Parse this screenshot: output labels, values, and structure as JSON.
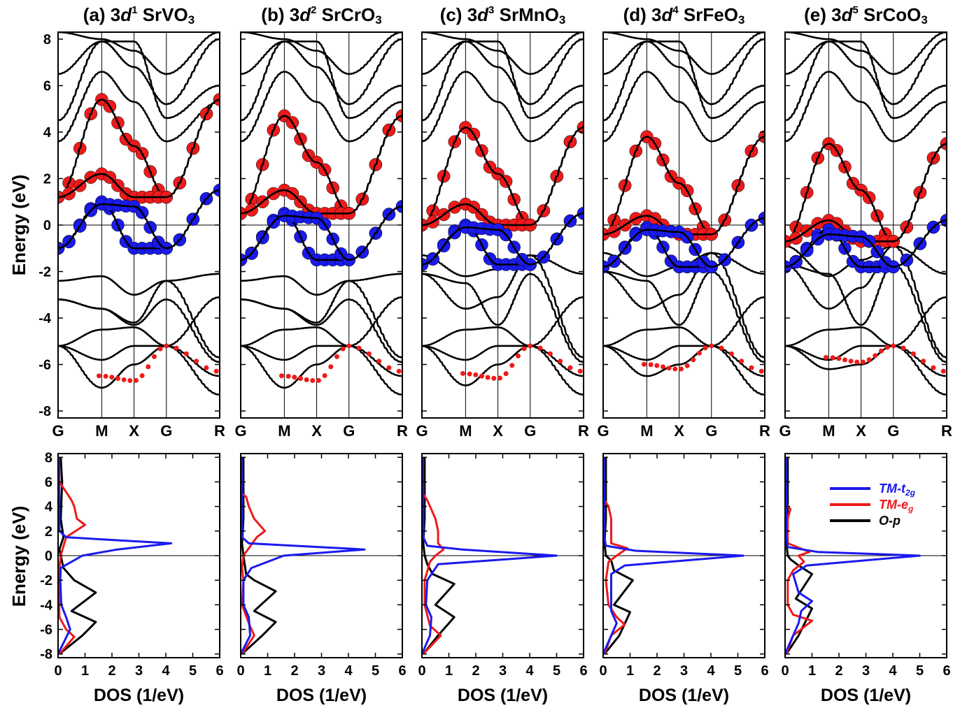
{
  "figure": {
    "band_ylabel": "Energy (eV)",
    "dos_ylabel": "Energy (eV)",
    "dos_xlabel": "DOS (1/eV)",
    "legend": [
      {
        "label": "TM-t",
        "sub": "2g",
        "color": "#1a1aee"
      },
      {
        "label": "TM-e",
        "sub": "g",
        "color": "#ee1a1a"
      },
      {
        "label": "O-p",
        "sub": "",
        "color": "#000000"
      }
    ]
  },
  "panels": [
    {
      "tag": "(a) 3",
      "d": "d",
      "sup": "1",
      "comp": " SrVO",
      "sub3": "3"
    },
    {
      "tag": "(b) 3",
      "d": "d",
      "sup": "2",
      "comp": " SrCrO",
      "sub3": "3"
    },
    {
      "tag": "(c) 3",
      "d": "d",
      "sup": "3",
      "comp": " SrMnO",
      "sub3": "3"
    },
    {
      "tag": "(d) 3",
      "d": "d",
      "sup": "4",
      "comp": " SrFeO",
      "sub3": "3"
    },
    {
      "tag": "(e) 3",
      "d": "d",
      "sup": "5",
      "comp": " SrCoO",
      "sub3": "3"
    }
  ],
  "chart_data": [
    {
      "type": "line",
      "name": "band structure",
      "kpoints": [
        "G",
        "M",
        "X",
        "G",
        "R"
      ],
      "ylabel": "Energy (eV)",
      "ylim": [
        -8.3,
        8.3
      ],
      "yticks": [
        -8,
        -6,
        -4,
        -2,
        0,
        2,
        4,
        6,
        8
      ],
      "fermi_level": 0,
      "panels": [
        {
          "eg_bands": [
            [
              1.2,
              5.4,
              3.4,
              1.2,
              5.4
            ],
            [
              1.2,
              2.2,
              1.2,
              1.2,
              5.4
            ]
          ],
          "t2g_bands": [
            [
              -1.0,
              1.0,
              -1.0,
              -1.0,
              1.5
            ],
            [
              -1.0,
              0.9,
              0.8,
              -1.0,
              1.5
            ]
          ],
          "o_top": -2.4,
          "o_bottom": -7.0
        },
        {
          "eg_bands": [
            [
              0.5,
              4.7,
              2.7,
              0.5,
              4.7
            ],
            [
              0.5,
              1.5,
              0.5,
              0.5,
              4.7
            ]
          ],
          "t2g_bands": [
            [
              -1.5,
              0.5,
              -1.5,
              -1.5,
              0.8
            ],
            [
              -1.5,
              0.4,
              0.3,
              -1.5,
              0.8
            ]
          ],
          "o_top": -2.4,
          "o_bottom": -7.0
        },
        {
          "eg_bands": [
            [
              0.0,
              4.2,
              2.2,
              0.0,
              4.2
            ],
            [
              0.0,
              0.9,
              0.0,
              0.0,
              4.2
            ]
          ],
          "t2g_bands": [
            [
              -1.7,
              0.0,
              -1.7,
              -1.7,
              0.5
            ],
            [
              -1.7,
              -0.1,
              -0.2,
              -1.7,
              0.5
            ]
          ],
          "o_top": -1.3,
          "o_bottom": -6.9
        },
        {
          "eg_bands": [
            [
              -0.4,
              3.8,
              1.8,
              -0.4,
              3.8
            ],
            [
              -0.4,
              0.4,
              -0.4,
              -0.4,
              3.8
            ]
          ],
          "t2g_bands": [
            [
              -1.8,
              -0.1,
              -1.8,
              -1.8,
              0.3
            ],
            [
              -1.8,
              -0.2,
              -0.3,
              -1.8,
              0.3
            ]
          ],
          "o_top": -1.2,
          "o_bottom": -6.5
        },
        {
          "eg_bands": [
            [
              -0.7,
              3.5,
              1.5,
              -0.7,
              3.5
            ],
            [
              -0.7,
              0.2,
              -0.7,
              -0.7,
              3.5
            ]
          ],
          "t2g_bands": [
            [
              -1.8,
              -0.2,
              -1.8,
              -1.8,
              0.2
            ],
            [
              -1.8,
              -0.4,
              -0.5,
              -1.8,
              0.2
            ]
          ],
          "o_top": -0.9,
          "o_bottom": -6.2
        }
      ]
    },
    {
      "type": "line",
      "name": "density of states",
      "xlabel": "DOS (1/eV)",
      "ylabel": "Energy (eV)",
      "xlim": [
        0,
        6
      ],
      "ylim": [
        -8.3,
        8.3
      ],
      "xticks": [
        0,
        1,
        2,
        3,
        4,
        5,
        6
      ],
      "yticks": [
        -8,
        -6,
        -4,
        -2,
        0,
        2,
        4,
        6,
        8
      ],
      "series_labels": [
        "TM-t2g",
        "TM-eg",
        "O-p"
      ],
      "panels": [
        {
          "t2g": [
            [
              -8,
              0
            ],
            [
              -6,
              0.45
            ],
            [
              -5,
              0.3
            ],
            [
              -4,
              0.12
            ],
            [
              -2,
              0.08
            ],
            [
              -1,
              0.1
            ],
            [
              0,
              0.9
            ],
            [
              0.5,
              2.2
            ],
            [
              1.0,
              4.2
            ],
            [
              1.3,
              1.8
            ],
            [
              1.5,
              0.3
            ],
            [
              2,
              0.05
            ],
            [
              4,
              0.05
            ],
            [
              6,
              0.04
            ],
            [
              8,
              0.03
            ]
          ],
          "eg": [
            [
              -8,
              0.05
            ],
            [
              -6.6,
              0.6
            ],
            [
              -6,
              0.3
            ],
            [
              -5,
              0.05
            ],
            [
              -3,
              0.03
            ],
            [
              -1,
              0.05
            ],
            [
              0,
              0.1
            ],
            [
              1.5,
              0.3
            ],
            [
              2.5,
              1.0
            ],
            [
              3,
              0.7
            ],
            [
              4,
              0.6
            ],
            [
              4.5,
              0.5
            ],
            [
              5.5,
              0.2
            ],
            [
              6,
              0.05
            ],
            [
              8,
              0.03
            ]
          ],
          "op": [
            [
              -8,
              0.05
            ],
            [
              -6.5,
              0.9
            ],
            [
              -5.4,
              1.4
            ],
            [
              -4.5,
              0.5
            ],
            [
              -3.0,
              1.4
            ],
            [
              -2.0,
              0.6
            ],
            [
              -1,
              0.2
            ],
            [
              0,
              0.1
            ],
            [
              0.5,
              0.05
            ],
            [
              1.5,
              0.2
            ],
            [
              3,
              0.1
            ],
            [
              6,
              0.15
            ],
            [
              8,
              0.1
            ]
          ]
        },
        {
          "t2g": [
            [
              -8,
              0
            ],
            [
              -6.5,
              0.35
            ],
            [
              -5,
              0.3
            ],
            [
              -4,
              0.1
            ],
            [
              -2,
              0.1
            ],
            [
              -1.0,
              0.4
            ],
            [
              0,
              1.6
            ],
            [
              0.5,
              4.6
            ],
            [
              0.8,
              2.0
            ],
            [
              1.0,
              0.3
            ],
            [
              1.5,
              0.05
            ],
            [
              4,
              0.05
            ],
            [
              6,
              0.04
            ],
            [
              8,
              0.03
            ]
          ],
          "eg": [
            [
              -8,
              0.05
            ],
            [
              -6.5,
              0.5
            ],
            [
              -5.5,
              0.3
            ],
            [
              -4,
              0.05
            ],
            [
              -2,
              0.1
            ],
            [
              -1,
              0.05
            ],
            [
              0,
              0.1
            ],
            [
              1.5,
              0.6
            ],
            [
              2,
              0.9
            ],
            [
              3,
              0.5
            ],
            [
              4,
              0.3
            ],
            [
              4.8,
              0.2
            ],
            [
              5,
              0.05
            ],
            [
              8,
              0.03
            ]
          ],
          "op": [
            [
              -8,
              0.05
            ],
            [
              -6.5,
              0.8
            ],
            [
              -5.4,
              1.3
            ],
            [
              -4.5,
              0.5
            ],
            [
              -2.9,
              1.3
            ],
            [
              -2.0,
              0.5
            ],
            [
              -1.5,
              0.2
            ],
            [
              0,
              0.1
            ],
            [
              1,
              0.05
            ],
            [
              3,
              0.1
            ],
            [
              6,
              0.1
            ],
            [
              8,
              0.1
            ]
          ]
        },
        {
          "t2g": [
            [
              -8,
              0
            ],
            [
              -6.5,
              0.3
            ],
            [
              -5,
              0.35
            ],
            [
              -4,
              0.15
            ],
            [
              -2,
              0.2
            ],
            [
              -0.7,
              0.6
            ],
            [
              0,
              5.0
            ],
            [
              0.5,
              1.5
            ],
            [
              0.8,
              0.2
            ],
            [
              1.5,
              0.05
            ],
            [
              4,
              0.05
            ],
            [
              6,
              0.04
            ],
            [
              8,
              0.03
            ]
          ],
          "eg": [
            [
              -8,
              0.05
            ],
            [
              -6.5,
              0.7
            ],
            [
              -5.7,
              0.3
            ],
            [
              -4,
              0.1
            ],
            [
              -2,
              0.1
            ],
            [
              -0.5,
              0.3
            ],
            [
              0,
              0.5
            ],
            [
              0.5,
              0.8
            ],
            [
              1,
              0.6
            ],
            [
              2,
              0.6
            ],
            [
              3,
              0.5
            ],
            [
              4.5,
              0.2
            ],
            [
              5,
              0.05
            ],
            [
              8,
              0.03
            ]
          ],
          "op": [
            [
              -8,
              0.05
            ],
            [
              -6.5,
              0.6
            ],
            [
              -5.0,
              1.2
            ],
            [
              -4.0,
              0.5
            ],
            [
              -2.3,
              1.2
            ],
            [
              -1.5,
              0.4
            ],
            [
              -0.7,
              0.2
            ],
            [
              0,
              0.1
            ],
            [
              1,
              0.05
            ],
            [
              3,
              0.1
            ],
            [
              6,
              0.1
            ],
            [
              8,
              0.1
            ]
          ]
        },
        {
          "t2g": [
            [
              -8,
              0
            ],
            [
              -6.5,
              0.3
            ],
            [
              -5.5,
              0.5
            ],
            [
              -4.5,
              0.3
            ],
            [
              -3,
              0.3
            ],
            [
              -1.5,
              0.3
            ],
            [
              -0.8,
              0.8
            ],
            [
              0,
              5.2
            ],
            [
              0.4,
              1.2
            ],
            [
              0.8,
              0.1
            ],
            [
              1.5,
              0.05
            ],
            [
              4,
              0.05
            ],
            [
              6,
              0.04
            ],
            [
              8,
              0.03
            ]
          ],
          "eg": [
            [
              -8,
              0.05
            ],
            [
              -6.5,
              0.3
            ],
            [
              -5.6,
              0.8
            ],
            [
              -5,
              0.5
            ],
            [
              -4,
              0.2
            ],
            [
              -2,
              0.1
            ],
            [
              -0.5,
              0.2
            ],
            [
              0,
              0.5
            ],
            [
              0.6,
              0.9
            ],
            [
              1,
              0.3
            ],
            [
              2,
              0.3
            ],
            [
              3,
              0.3
            ],
            [
              4,
              0.2
            ],
            [
              4.5,
              0.05
            ],
            [
              8,
              0.03
            ]
          ],
          "op": [
            [
              -8,
              0.05
            ],
            [
              -6.5,
              0.6
            ],
            [
              -4.6,
              1.0
            ],
            [
              -4.0,
              0.4
            ],
            [
              -2.0,
              1.1
            ],
            [
              -1.2,
              0.4
            ],
            [
              -0.4,
              0.3
            ],
            [
              0,
              0.1
            ],
            [
              1,
              0.05
            ],
            [
              3,
              0.1
            ],
            [
              6,
              0.1
            ],
            [
              8,
              0.1
            ]
          ]
        },
        {
          "t2g": [
            [
              -8,
              0
            ],
            [
              -6.5,
              0.3
            ],
            [
              -5.5,
              0.5
            ],
            [
              -4.5,
              0.6
            ],
            [
              -3.7,
              1.0
            ],
            [
              -3,
              0.5
            ],
            [
              -1.5,
              0.3
            ],
            [
              -0.8,
              0.8
            ],
            [
              0,
              5.0
            ],
            [
              0.3,
              1.2
            ],
            [
              0.7,
              0.1
            ],
            [
              1.5,
              0.05
            ],
            [
              4,
              0.05
            ],
            [
              6,
              0.04
            ],
            [
              8,
              0.03
            ]
          ],
          "eg": [
            [
              -8,
              0.05
            ],
            [
              -6.5,
              0.3
            ],
            [
              -5.3,
              1.0
            ],
            [
              -4.8,
              0.3
            ],
            [
              -4,
              0.1
            ],
            [
              -2,
              0.1
            ],
            [
              -1.2,
              0.3
            ],
            [
              -0.5,
              0.7
            ],
            [
              0,
              0.5
            ],
            [
              0.3,
              0.9
            ],
            [
              1,
              0.1
            ],
            [
              3,
              0.1
            ],
            [
              3.8,
              0.2
            ],
            [
              4.1,
              0.05
            ],
            [
              8,
              0.03
            ]
          ],
          "op": [
            [
              -8,
              0.05
            ],
            [
              -6.5,
              0.5
            ],
            [
              -4.3,
              1.0
            ],
            [
              -3.5,
              0.4
            ],
            [
              -1.5,
              1.0
            ],
            [
              -0.8,
              0.5
            ],
            [
              -0.3,
              0.2
            ],
            [
              0,
              0.1
            ],
            [
              1,
              0.05
            ],
            [
              3,
              0.1
            ],
            [
              6,
              0.1
            ],
            [
              8,
              0.1
            ]
          ]
        }
      ]
    }
  ]
}
